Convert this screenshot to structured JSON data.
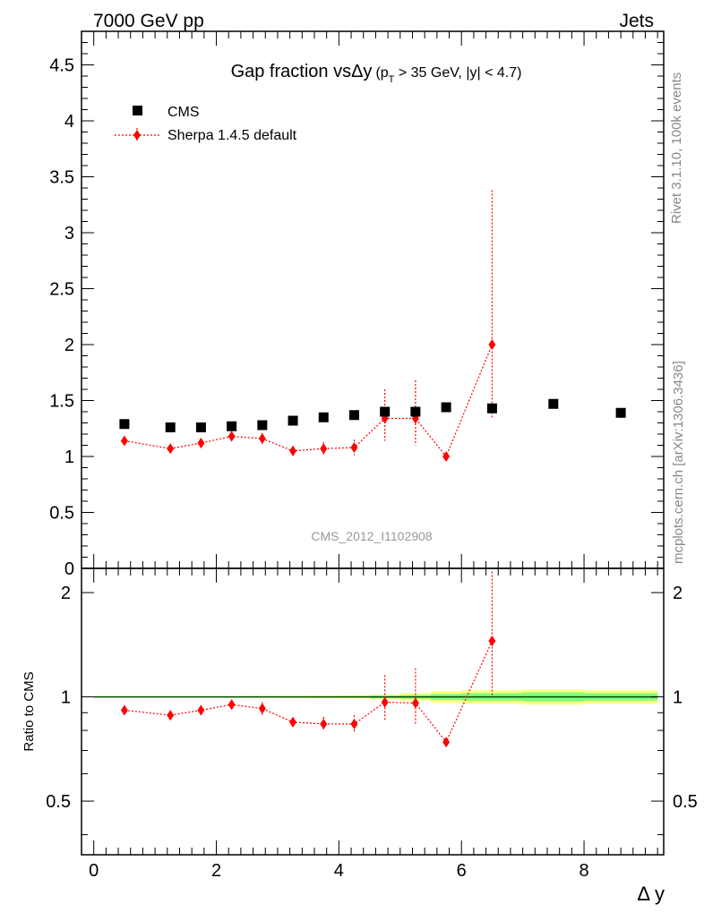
{
  "header": {
    "left": "7000 GeV pp",
    "right": "Jets"
  },
  "side_labels": {
    "rivet": "Rivet 3.1.10,  100k events",
    "mcplots": "mcplots.cern.ch [arXiv:1306.3436]"
  },
  "colors": {
    "data": "#000000",
    "mc": "#ff0000",
    "band_inner": "#80ff80",
    "band_outer": "#ffff80",
    "ref_line": "#004d00"
  },
  "chart_data": [
    {
      "type": "scatter",
      "title": {
        "main": "Gap fraction vsΔy",
        "cut_pt": "(p",
        "cut_pt_sub": "T",
        "cut_rest": " > 35 GeV, |y| < 4.7)"
      },
      "analysis_label": "CMS_2012_I1102908",
      "xlim": [
        -0.2,
        9.3
      ],
      "ylim": [
        0,
        4.8
      ],
      "yticks": [
        "0",
        "0.5",
        "1",
        "1.5",
        "2",
        "2.5",
        "3",
        "3.5",
        "4",
        "4.5"
      ],
      "legend_position": "top-left",
      "series": [
        {
          "name": "CMS",
          "marker": "square",
          "x": [
            0.5,
            1.25,
            1.75,
            2.25,
            2.75,
            3.25,
            3.75,
            4.25,
            4.75,
            5.25,
            5.75,
            6.5,
            7.5,
            8.6
          ],
          "y": [
            1.29,
            1.26,
            1.26,
            1.27,
            1.28,
            1.32,
            1.35,
            1.37,
            1.4,
            1.4,
            1.44,
            1.43,
            1.47,
            1.39
          ]
        },
        {
          "name": "Sherpa 1.4.5 default",
          "marker": "diamond",
          "line": "dotted",
          "x": [
            0.5,
            1.25,
            1.75,
            2.25,
            2.75,
            3.25,
            3.75,
            4.25,
            4.75,
            5.25,
            5.75,
            6.5
          ],
          "y": [
            1.14,
            1.07,
            1.12,
            1.18,
            1.16,
            1.05,
            1.07,
            1.08,
            1.34,
            1.34,
            1.0,
            2.0
          ],
          "yerr_low": [
            0.03,
            0.03,
            0.04,
            0.04,
            0.05,
            0.04,
            0.06,
            0.07,
            0.2,
            0.24,
            0.03,
            0.65
          ],
          "yerr_high": [
            0.03,
            0.03,
            0.04,
            0.04,
            0.05,
            0.04,
            0.06,
            0.07,
            0.26,
            0.34,
            0.03,
            1.38
          ]
        }
      ]
    },
    {
      "type": "scatter",
      "ylabel": "Ratio to CMS",
      "xlabel": "Δ y",
      "xlim": [
        -0.2,
        9.3
      ],
      "ylim": [
        0.35,
        2.35
      ],
      "log_y": true,
      "xticks": [
        "0",
        "2",
        "4",
        "6",
        "8"
      ],
      "yticks": [
        "0.5",
        "1",
        "2"
      ],
      "reference": 1.0,
      "band": {
        "x_edges": [
          0,
          1,
          1.5,
          2,
          2.5,
          3,
          3.5,
          4,
          4.5,
          5,
          5.5,
          6,
          7,
          8,
          9.2
        ],
        "inner": [
          0.003,
          0.003,
          0.003,
          0.003,
          0.003,
          0.004,
          0.004,
          0.005,
          0.008,
          0.012,
          0.02,
          0.025,
          0.03,
          0.025
        ],
        "outer": [
          0.005,
          0.005,
          0.005,
          0.005,
          0.006,
          0.007,
          0.008,
          0.01,
          0.015,
          0.025,
          0.04,
          0.045,
          0.05,
          0.045
        ]
      },
      "series": [
        {
          "name": "Sherpa 1.4.5 default",
          "x": [
            0.5,
            1.25,
            1.75,
            2.25,
            2.75,
            3.25,
            3.75,
            4.25,
            4.75,
            5.25,
            5.75,
            6.5
          ],
          "y": [
            0.915,
            0.885,
            0.915,
            0.95,
            0.925,
            0.845,
            0.835,
            0.835,
            0.965,
            0.96,
            0.74,
            1.45
          ],
          "yerr_low": [
            0.025,
            0.025,
            0.03,
            0.03,
            0.04,
            0.03,
            0.04,
            0.05,
            0.11,
            0.13,
            0.02,
            0.45
          ],
          "yerr_high": [
            0.025,
            0.025,
            0.03,
            0.03,
            0.04,
            0.03,
            0.04,
            0.05,
            0.19,
            0.25,
            0.02,
            0.85
          ]
        }
      ]
    }
  ]
}
